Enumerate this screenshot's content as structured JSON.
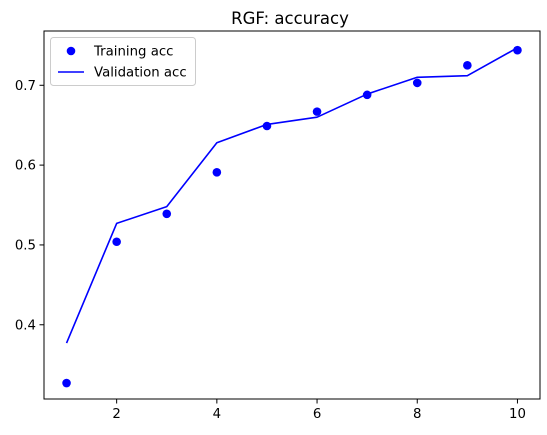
{
  "chart_data": {
    "type": "line",
    "title": "RGF: accuracy",
    "xlabel": "",
    "ylabel": "",
    "xlim": [
      0.55,
      10.45
    ],
    "ylim": [
      0.307,
      0.768
    ],
    "x_ticks": [
      2,
      4,
      6,
      8,
      10
    ],
    "y_ticks": [
      0.4,
      0.5,
      0.6,
      0.7
    ],
    "x_tick_labels": [
      "2",
      "4",
      "6",
      "8",
      "10"
    ],
    "y_tick_labels": [
      "0.4",
      "0.5",
      "0.6",
      "0.7"
    ],
    "grid": false,
    "legend_position": "top-left",
    "x": [
      1,
      2,
      3,
      4,
      5,
      6,
      7,
      8,
      9,
      10
    ],
    "series": [
      {
        "name": "Training acc",
        "style": "markers",
        "color": "#0000ff",
        "values": [
          0.327,
          0.504,
          0.539,
          0.591,
          0.649,
          0.667,
          0.688,
          0.703,
          0.725,
          0.744
        ]
      },
      {
        "name": "Validation acc",
        "style": "line",
        "color": "#0000ff",
        "values": [
          0.377,
          0.527,
          0.548,
          0.628,
          0.651,
          0.66,
          0.689,
          0.71,
          0.712,
          0.747
        ]
      }
    ]
  }
}
